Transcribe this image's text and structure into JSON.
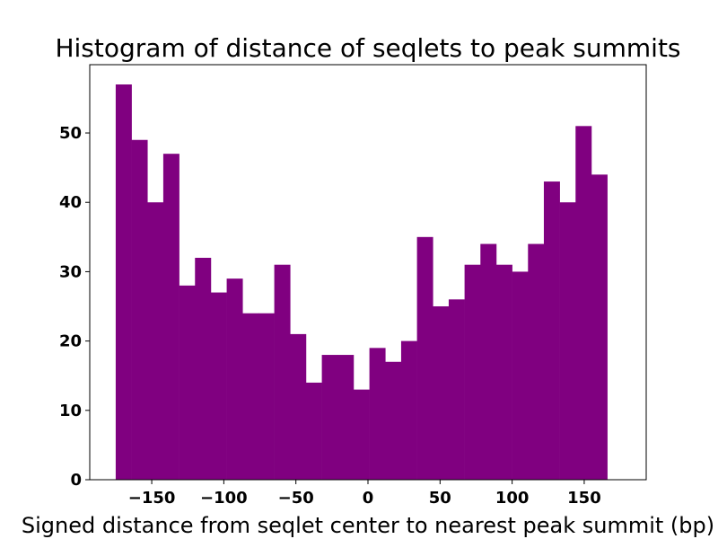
{
  "chart_data": {
    "type": "bar",
    "title": "Histogram of distance of seqlets to peak summits",
    "xlabel": "Signed distance from seqlet center to nearest peak summit (bp)",
    "ylabel": "",
    "bar_color": "#800080",
    "bin_width": 11,
    "bins": [
      {
        "x0": -175,
        "x1": -164,
        "value": 57
      },
      {
        "x0": -164,
        "x1": -153,
        "value": 49
      },
      {
        "x0": -153,
        "x1": -142,
        "value": 40
      },
      {
        "x0": -142,
        "x1": -131,
        "value": 47
      },
      {
        "x0": -131,
        "x1": -120,
        "value": 28
      },
      {
        "x0": -120,
        "x1": -109,
        "value": 32
      },
      {
        "x0": -109,
        "x1": -98,
        "value": 27
      },
      {
        "x0": -98,
        "x1": -87,
        "value": 29
      },
      {
        "x0": -87,
        "x1": -76,
        "value": 24
      },
      {
        "x0": -76,
        "x1": -65,
        "value": 24
      },
      {
        "x0": -65,
        "x1": -54,
        "value": 31
      },
      {
        "x0": -54,
        "x1": -43,
        "value": 21
      },
      {
        "x0": -43,
        "x1": -32,
        "value": 14
      },
      {
        "x0": -32,
        "x1": -21,
        "value": 18
      },
      {
        "x0": -21,
        "x1": -10,
        "value": 18
      },
      {
        "x0": -10,
        "x1": 1,
        "value": 13
      },
      {
        "x0": 1,
        "x1": 12,
        "value": 19
      },
      {
        "x0": 12,
        "x1": 23,
        "value": 17
      },
      {
        "x0": 23,
        "x1": 34,
        "value": 20
      },
      {
        "x0": 34,
        "x1": 45,
        "value": 35
      },
      {
        "x0": 45,
        "x1": 56,
        "value": 25
      },
      {
        "x0": 56,
        "x1": 67,
        "value": 26
      },
      {
        "x0": 67,
        "x1": 78,
        "value": 31
      },
      {
        "x0": 78,
        "x1": 89,
        "value": 34
      },
      {
        "x0": 89,
        "x1": 100,
        "value": 31
      },
      {
        "x0": 100,
        "x1": 111,
        "value": 30
      },
      {
        "x0": 111,
        "x1": 122,
        "value": 34
      },
      {
        "x0": 122,
        "x1": 133,
        "value": 43
      },
      {
        "x0": 133,
        "x1": 144,
        "value": 40
      },
      {
        "x0": 144,
        "x1": 155,
        "value": 51
      },
      {
        "x0": 155,
        "x1": 166,
        "value": 44
      }
    ],
    "xlim": [
      -193,
      193
    ],
    "ylim": [
      0,
      59.85
    ],
    "xticks": [
      -150,
      -100,
      -50,
      0,
      50,
      100,
      150
    ],
    "xtick_labels": [
      "−150",
      "−100",
      "−50",
      "0",
      "50",
      "100",
      "150"
    ],
    "yticks": [
      0,
      10,
      20,
      30,
      40,
      50
    ],
    "ytick_labels": [
      "0",
      "10",
      "20",
      "30",
      "40",
      "50"
    ],
    "grid": false,
    "legend": "none"
  }
}
